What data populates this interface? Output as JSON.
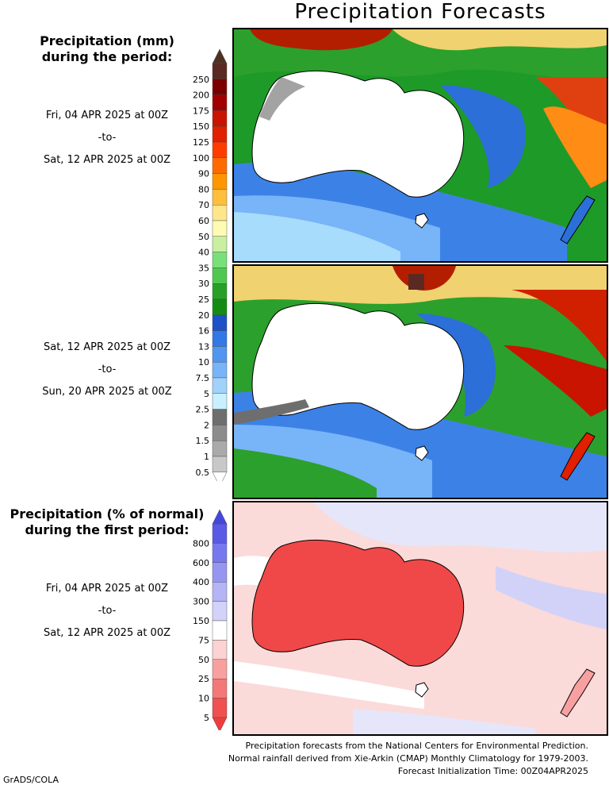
{
  "title": "Precipitation Forecasts",
  "panel_top_heading": [
    "Precipitation (mm)",
    "during the period:"
  ],
  "period1": {
    "from": "Fri, 04 APR 2025 at 00Z",
    "sep": "-to-",
    "to": "Sat, 12 APR 2025 at 00Z"
  },
  "period2": {
    "from": "Sat, 12 APR 2025 at 00Z",
    "sep": "-to-",
    "to": "Sun, 20 APR 2025 at 00Z"
  },
  "panel_bottom_heading": [
    "Precipitation (% of normal)",
    "during the first period:"
  ],
  "period3": {
    "from": "Fri, 04 APR 2025 at 00Z",
    "sep": "-to-",
    "to": "Sat, 12 APR 2025 at 00Z"
  },
  "mm_scale": {
    "labels": [
      "250",
      "200",
      "175",
      "150",
      "125",
      "100",
      "90",
      "80",
      "70",
      "60",
      "50",
      "40",
      "35",
      "30",
      "25",
      "20",
      "16",
      "13",
      "10",
      "7.5",
      "5",
      "2.5",
      "2",
      "1.5",
      "1",
      "0.5"
    ],
    "colors": [
      "#5a2a22",
      "#7a0000",
      "#a00000",
      "#c81400",
      "#e02000",
      "#ff3c00",
      "#ff6a00",
      "#ff9600",
      "#ffbe3c",
      "#ffe68c",
      "#fffab4",
      "#c8f0a0",
      "#78e078",
      "#50c850",
      "#28a028",
      "#148c14",
      "#1e50c8",
      "#3278e6",
      "#5096f0",
      "#78b4f8",
      "#a0d2fc",
      "#c8f0ff",
      "#6e6e6e",
      "#8c8c8c",
      "#aaaaaa",
      "#c8c8c8"
    ],
    "top_color": "#503024"
  },
  "pct_scale": {
    "labels": [
      "800",
      "600",
      "400",
      "300",
      "150",
      "75",
      "50",
      "25",
      "10",
      "5"
    ],
    "colors": [
      "#5a5ae6",
      "#7878ee",
      "#9696f2",
      "#b4b4f6",
      "#d2d2fa",
      "#ffffff",
      "#fcd2d2",
      "#f8a0a0",
      "#f47878",
      "#f05050"
    ],
    "top_color": "#4646dc",
    "bottom_color": "#f03c3c"
  },
  "footer": [
    "Precipitation forecasts from the National Centers for Environmental Prediction.",
    "Normal rainfall derived from Xie-Arkin (CMAP) Monthly Climatology for 1979-2003.",
    "Forecast Initialization Time: 00Z04APR2025"
  ],
  "credit": "GrADS/COLA"
}
